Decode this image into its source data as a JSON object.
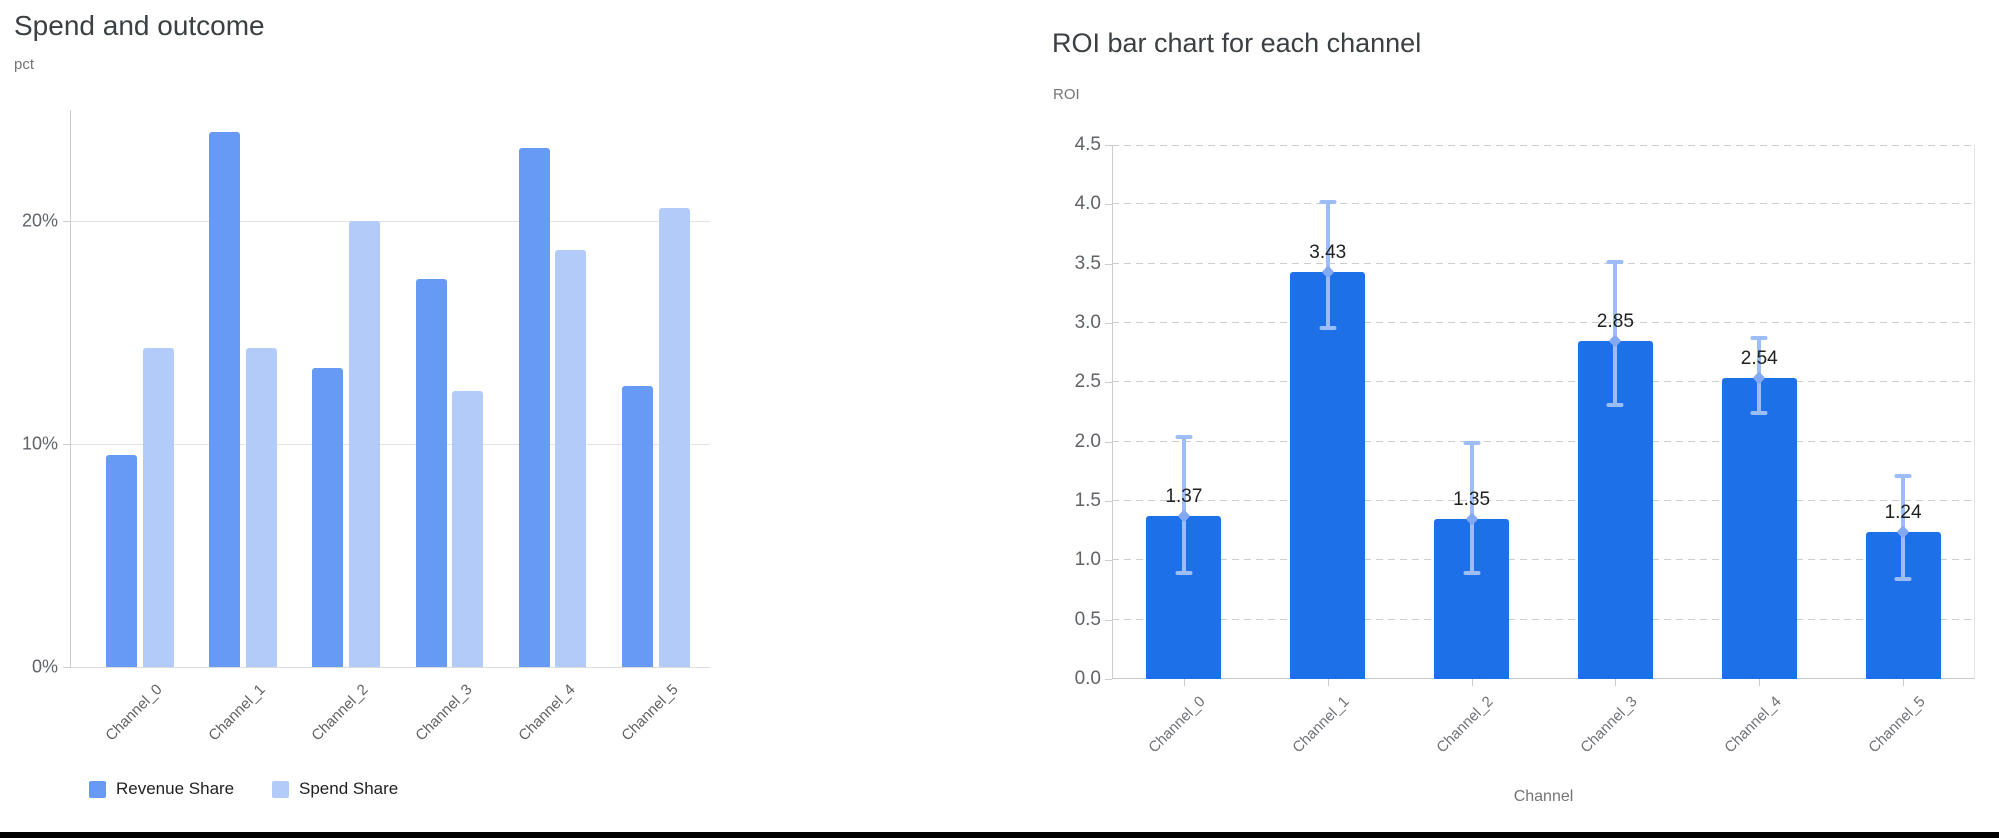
{
  "page": {
    "background": "#ffffff",
    "bottom_edge_color": "#000000"
  },
  "chart_data": [
    {
      "type": "bar",
      "title": "Spend and outcome",
      "ylabel": "pct",
      "xlabel": "",
      "categories": [
        "Channel_0",
        "Channel_1",
        "Channel_2",
        "Channel_3",
        "Channel_4",
        "Channel_5"
      ],
      "series": [
        {
          "name": "Revenue Share",
          "color": "#679af5",
          "values": [
            9.5,
            24.0,
            13.4,
            17.4,
            23.3,
            12.6
          ]
        },
        {
          "name": "Spend Share",
          "color": "#b3cbf8",
          "values": [
            14.3,
            14.3,
            20.0,
            12.4,
            18.7,
            20.6
          ]
        }
      ],
      "ylim": [
        0,
        25
      ],
      "yticks": [
        {
          "value": 0,
          "label": "0%"
        },
        {
          "value": 10,
          "label": "10%"
        },
        {
          "value": 20,
          "label": "20%"
        }
      ],
      "grid": "solid-horizontal",
      "legend_position": "bottom-left",
      "tick_color": "#5f6368",
      "label_color": "#616161"
    },
    {
      "type": "bar",
      "title": "ROI bar chart for each channel",
      "ylabel": "ROI",
      "xlabel": "Channel",
      "categories": [
        "Channel_0",
        "Channel_1",
        "Channel_2",
        "Channel_3",
        "Channel_4",
        "Channel_5"
      ],
      "series": [
        {
          "name": "ROI",
          "color": "#1d70e8",
          "values": [
            1.37,
            3.43,
            1.35,
            2.85,
            2.54,
            1.24
          ]
        }
      ],
      "bar_labels": [
        "1.37",
        "3.43",
        "1.35",
        "2.85",
        "2.54",
        "1.24"
      ],
      "error_bars": {
        "color": "#9dbdf8",
        "marker_color": "#84a9f3",
        "lower": [
          0.89,
          2.96,
          0.89,
          2.31,
          2.24,
          0.84
        ],
        "upper": [
          2.04,
          4.02,
          1.99,
          3.51,
          2.87,
          1.71
        ]
      },
      "ylim": [
        0,
        4.5
      ],
      "ytick_step": 0.5,
      "yticks_labels": [
        "0.0",
        "0.5",
        "1.0",
        "1.5",
        "2.0",
        "2.5",
        "3.0",
        "3.5",
        "4.0",
        "4.5"
      ],
      "grid": "dashed-horizontal",
      "legend_position": "none",
      "value_label_color": "#1f1f1f"
    }
  ]
}
